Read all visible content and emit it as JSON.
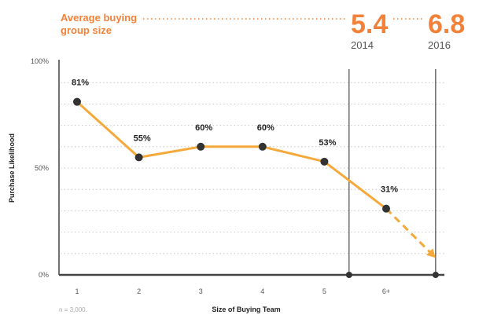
{
  "header": {
    "label_line1": "Average buying",
    "label_line2": "group size",
    "value_2014": "5.4",
    "year_2014": "2014",
    "value_2016": "6.8",
    "year_2016": "2016"
  },
  "note": "n = 3,000.",
  "colors": {
    "accent": "#f2813a",
    "line": "#f5a93a",
    "marker": "#333333",
    "axis": "#444444"
  },
  "chart_data": {
    "type": "line",
    "categories": [
      "1",
      "2",
      "3",
      "4",
      "5",
      "6+"
    ],
    "series": [
      {
        "values": [
          81,
          55,
          60,
          60,
          53,
          31
        ]
      }
    ],
    "data_labels": [
      "81%",
      "55%",
      "60%",
      "60%",
      "53%",
      "31%"
    ],
    "projection": {
      "from_x": 6,
      "from_y": 31,
      "to_x": 6.8,
      "to_y": 8
    },
    "reference_lines": [
      5.4,
      6.8
    ],
    "ytick_labels": [
      "0%",
      "50%",
      "100%"
    ],
    "ytick_values": [
      0,
      50,
      100
    ],
    "xlabel": "Size of Buying Team",
    "ylabel": "Purchase Likelihood",
    "ylim": [
      0,
      100
    ],
    "grid": "dotted-horizontal"
  }
}
